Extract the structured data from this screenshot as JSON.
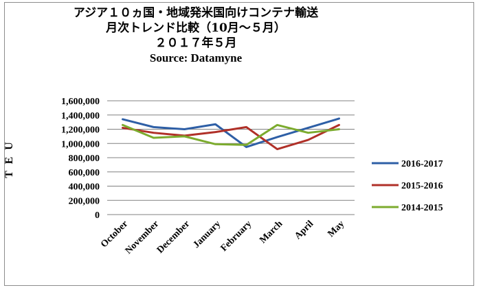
{
  "chart_data": {
    "type": "line",
    "title_lines": [
      "アジア１０ヵ国・地域発米国向けコンテナ輸送",
      "月次トレンド比較（10月～５月）",
      "２０１７年５月"
    ],
    "source": "Source: Datamyne",
    "ylabel": "T E U",
    "ylim": [
      0,
      1600000
    ],
    "yticks": [
      0,
      200000,
      400000,
      600000,
      800000,
      1000000,
      1200000,
      1400000,
      1600000
    ],
    "ytick_labels": [
      "0",
      "200,000",
      "400,000",
      "600,000",
      "800,000",
      "1,000,000",
      "1,200,000",
      "1,400,000",
      "1,600,000"
    ],
    "categories": [
      "October",
      "November",
      "December",
      "January",
      "February",
      "March",
      "April",
      "May"
    ],
    "grid": true,
    "legend_position": "right",
    "series": [
      {
        "name": "2016-2017",
        "color": "#2E5FA6",
        "values": [
          1340000,
          1230000,
          1200000,
          1270000,
          950000,
          1090000,
          1220000,
          1350000
        ]
      },
      {
        "name": "2015-2016",
        "color": "#B03028",
        "values": [
          1220000,
          1150000,
          1110000,
          1160000,
          1230000,
          920000,
          1050000,
          1260000
        ]
      },
      {
        "name": "2014-2015",
        "color": "#7CAB2E",
        "values": [
          1260000,
          1080000,
          1100000,
          990000,
          980000,
          1260000,
          1150000,
          1200000
        ]
      }
    ]
  }
}
